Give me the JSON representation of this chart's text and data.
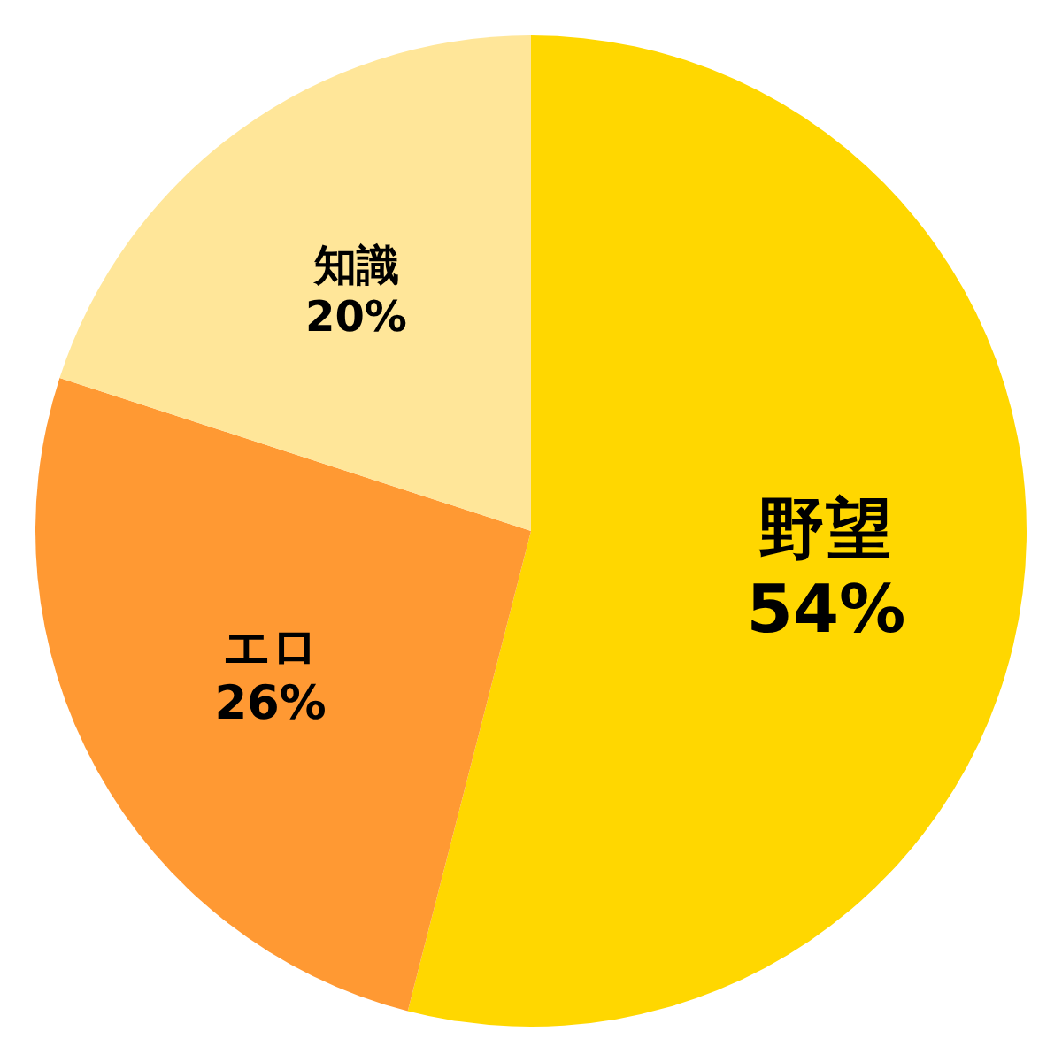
{
  "chart_data": {
    "type": "pie",
    "categories": [
      "野望",
      "エロ",
      "知識"
    ],
    "values": [
      54,
      26,
      20
    ],
    "value_labels": [
      "54%",
      "26%",
      "20%"
    ],
    "colors": [
      "#ffd700",
      "#ff9933",
      "#ffe699"
    ]
  }
}
